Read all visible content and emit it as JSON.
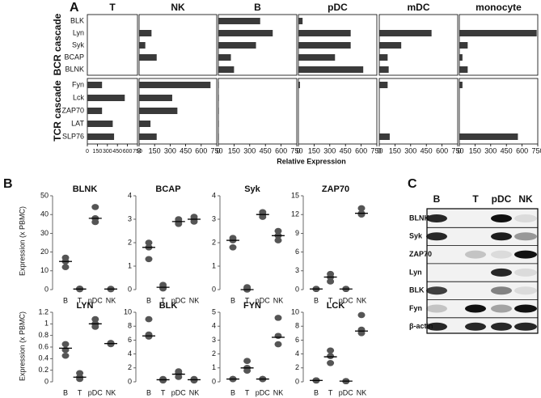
{
  "panels": [
    "A",
    "B",
    "C"
  ],
  "panel_a": {
    "categories": [
      "BLK",
      "Lyn",
      "Syk",
      "BCAP",
      "BLNK",
      "Fyn",
      "Lck",
      "ZAP70",
      "LAT",
      "SLP76"
    ],
    "groups": [
      "BCR cascade",
      "TCR cascade"
    ],
    "xlabel": "Relative Expression"
  },
  "panel_b": {
    "ylabel": "Expression (x PBMC)"
  },
  "chart_data": [
    {
      "type": "hbar",
      "title": "T",
      "color": "#3a3a3a",
      "values": [
        0,
        0,
        0,
        0,
        0,
        220,
        560,
        220,
        380,
        400
      ],
      "xlim": [
        0,
        750
      ],
      "xticks": [
        0,
        150,
        300,
        450,
        600,
        750
      ]
    },
    {
      "type": "hbar",
      "title": "NK",
      "color": "#3a3a3a",
      "values": [
        0,
        120,
        60,
        170,
        0,
        690,
        320,
        370,
        110,
        170
      ],
      "xlim": [
        0,
        750
      ],
      "xticks": [
        0,
        150,
        300,
        450,
        600,
        750
      ]
    },
    {
      "type": "hbar",
      "title": "B",
      "color": "#3a3a3a",
      "values": [
        400,
        520,
        360,
        120,
        150,
        5,
        5,
        5,
        5,
        5
      ],
      "xlim": [
        0,
        750
      ],
      "xticks": [
        0,
        150,
        300,
        450,
        600,
        750
      ]
    },
    {
      "type": "hbar",
      "title": "pDC",
      "color": "#3a3a3a",
      "values": [
        40,
        500,
        500,
        350,
        620,
        15,
        0,
        0,
        0,
        0
      ],
      "xlim": [
        0,
        750
      ],
      "xticks": [
        0,
        150,
        300,
        450,
        600,
        750
      ]
    },
    {
      "type": "hbar",
      "title": "mDC",
      "color": "#3a3a3a",
      "values": [
        0,
        500,
        210,
        80,
        90,
        80,
        0,
        0,
        0,
        100
      ],
      "xlim": [
        0,
        750
      ],
      "xticks": [
        0,
        150,
        300,
        450,
        600,
        750
      ]
    },
    {
      "type": "hbar",
      "title": "monocyte",
      "color": "#3a3a3a",
      "values": [
        0,
        740,
        80,
        30,
        80,
        30,
        0,
        0,
        0,
        560
      ],
      "xlim": [
        0,
        750
      ],
      "xticks": [
        0,
        150,
        300,
        450,
        600,
        750
      ]
    },
    {
      "type": "dot",
      "title": "BLNK",
      "categories": [
        "B",
        "T",
        "pDC",
        "NK"
      ],
      "points": [
        [
          17,
          15,
          12
        ],
        [
          0.5,
          0.3,
          0.2
        ],
        [
          44,
          38,
          36
        ],
        [
          0.4,
          0.3,
          0.2
        ]
      ],
      "values": [
        15,
        0.3,
        38,
        0.3
      ],
      "ylim": [
        0,
        50
      ],
      "yticks": [
        0,
        10,
        20,
        30,
        40,
        50
      ]
    },
    {
      "type": "dot",
      "title": "BCAP",
      "categories": [
        "B",
        "T",
        "pDC",
        "NK"
      ],
      "points": [
        [
          2,
          1.8,
          1.3
        ],
        [
          0.2,
          0.1,
          0.05
        ],
        [
          3,
          2.9,
          2.8
        ],
        [
          3.1,
          3,
          2.9
        ]
      ],
      "values": [
        1.8,
        0.1,
        2.9,
        3
      ],
      "ylim": [
        0,
        4
      ],
      "yticks": [
        0,
        1,
        2,
        3,
        4
      ]
    },
    {
      "type": "dot",
      "title": "Syk",
      "categories": [
        "B",
        "T",
        "pDC",
        "NK"
      ],
      "points": [
        [
          2.2,
          2.1,
          1.8
        ],
        [
          0.1,
          0.05,
          0
        ],
        [
          3.3,
          3.2,
          3.1
        ],
        [
          2.5,
          2.3,
          2.1
        ]
      ],
      "values": [
        2.1,
        0,
        3.2,
        2.3
      ],
      "ylim": [
        0,
        4
      ],
      "yticks": [
        0,
        1,
        2,
        3,
        4
      ]
    },
    {
      "type": "dot",
      "title": "ZAP70",
      "categories": [
        "B",
        "T",
        "pDC",
        "NK"
      ],
      "points": [
        [
          0.1,
          0.1,
          0.1
        ],
        [
          2.5,
          2,
          1.3
        ],
        [
          0.1,
          0.1,
          0.1
        ],
        [
          13,
          12.2,
          12
        ]
      ],
      "values": [
        0.1,
        2,
        0.1,
        12.2
      ],
      "ylim": [
        0,
        15
      ],
      "yticks": [
        0,
        3,
        6,
        9,
        12,
        15
      ]
    },
    {
      "type": "dot",
      "title": "LYN",
      "categories": [
        "B",
        "T",
        "pDC",
        "NK"
      ],
      "points": [
        [
          0.65,
          0.55,
          0.45
        ],
        [
          0.15,
          0.08,
          0.05
        ],
        [
          1.08,
          1,
          0.95
        ],
        [
          0.67,
          0.66,
          0.65
        ]
      ],
      "values": [
        0.58,
        0.08,
        1,
        0.66
      ],
      "ylim": [
        0,
        1.2
      ],
      "yticks": [
        0,
        0.2,
        0.4,
        0.6,
        0.8,
        1,
        1.2
      ]
    },
    {
      "type": "dot",
      "title": "BLK",
      "categories": [
        "B",
        "T",
        "pDC",
        "NK"
      ],
      "points": [
        [
          9,
          6.8,
          6.5
        ],
        [
          0.4,
          0.3,
          0.2
        ],
        [
          1.5,
          1.2,
          0.7
        ],
        [
          0.4,
          0.3,
          0.2
        ]
      ],
      "values": [
        6.6,
        0.3,
        1.1,
        0.3
      ],
      "ylim": [
        0,
        10
      ],
      "yticks": [
        0,
        2,
        4,
        6,
        8,
        10
      ]
    },
    {
      "type": "dot",
      "title": "FYN",
      "categories": [
        "B",
        "T",
        "pDC",
        "NK"
      ],
      "points": [
        [
          0.2,
          0.2,
          0.2
        ],
        [
          1.5,
          1,
          0.8
        ],
        [
          0.2,
          0.2,
          0.2
        ],
        [
          4.6,
          3.3,
          2.7
        ]
      ],
      "values": [
        0.2,
        1,
        0.2,
        3.2
      ],
      "ylim": [
        0,
        5
      ],
      "yticks": [
        0,
        1,
        2,
        3,
        4,
        5
      ]
    },
    {
      "type": "dot",
      "title": "LCK",
      "categories": [
        "B",
        "T",
        "pDC",
        "NK"
      ],
      "points": [
        [
          0.2,
          0.2,
          0.2
        ],
        [
          4.5,
          3.7,
          2.7
        ],
        [
          0.1,
          0.1,
          0.1
        ],
        [
          9.6,
          7.5,
          7
        ]
      ],
      "values": [
        0.2,
        3.6,
        0.1,
        7.3
      ],
      "ylim": [
        0,
        10
      ],
      "yticks": [
        0,
        2,
        4,
        6,
        8,
        10
      ]
    }
  ],
  "blot": {
    "columns": [
      "B",
      "T",
      "pDC",
      "NK"
    ],
    "rows": [
      "BLNK",
      "Syk",
      "ZAP70",
      "Lyn",
      "BLK",
      "Fyn",
      "β-actin"
    ]
  }
}
